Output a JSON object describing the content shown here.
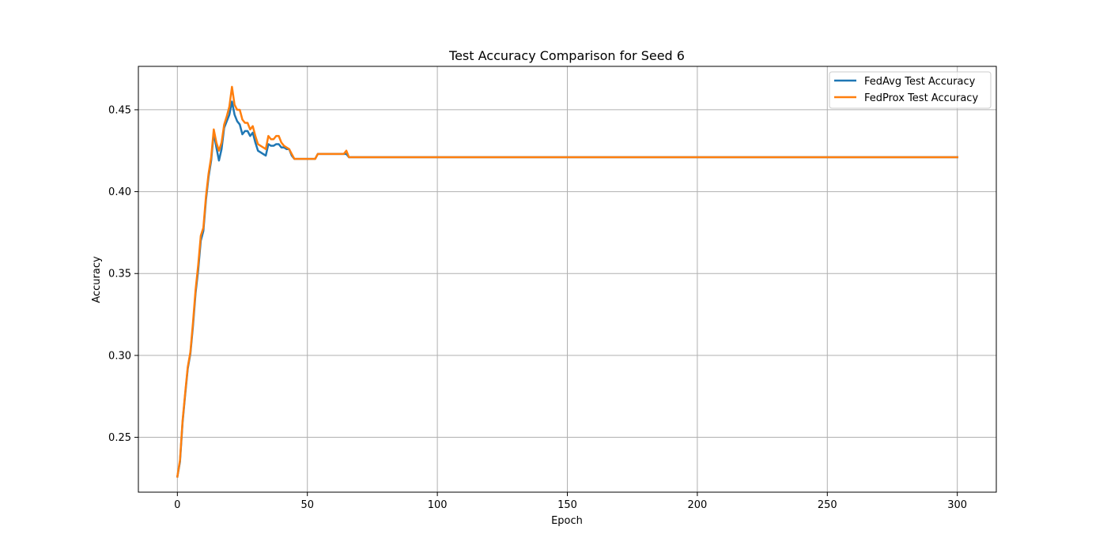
{
  "chart_data": {
    "type": "line",
    "title": "Test Accuracy Comparison for Seed 6",
    "xlabel": "Epoch",
    "ylabel": "Accuracy",
    "xlim": [
      -15,
      315
    ],
    "ylim": [
      0.2165,
      0.4765
    ],
    "xticks": [
      0,
      50,
      100,
      150,
      200,
      250,
      300
    ],
    "yticks": [
      0.25,
      0.3,
      0.35,
      0.4,
      0.45
    ],
    "ytick_labels": [
      "0.25",
      "0.30",
      "0.35",
      "0.40",
      "0.45"
    ],
    "grid": true,
    "legend_position": "top-right",
    "series": [
      {
        "name": "FedAvg Test Accuracy",
        "color": "#1f77b4",
        "points": [
          [
            0,
            0.226
          ],
          [
            1,
            0.235
          ],
          [
            2,
            0.259
          ],
          [
            3,
            0.276
          ],
          [
            4,
            0.292
          ],
          [
            5,
            0.301
          ],
          [
            6,
            0.318
          ],
          [
            7,
            0.338
          ],
          [
            8,
            0.352
          ],
          [
            9,
            0.37
          ],
          [
            10,
            0.376
          ],
          [
            11,
            0.395
          ],
          [
            12,
            0.409
          ],
          [
            13,
            0.419
          ],
          [
            14,
            0.436
          ],
          [
            15,
            0.427
          ],
          [
            16,
            0.419
          ],
          [
            17,
            0.426
          ],
          [
            18,
            0.439
          ],
          [
            19,
            0.443
          ],
          [
            20,
            0.447
          ],
          [
            21,
            0.455
          ],
          [
            22,
            0.447
          ],
          [
            23,
            0.443
          ],
          [
            24,
            0.441
          ],
          [
            25,
            0.435
          ],
          [
            26,
            0.437
          ],
          [
            27,
            0.437
          ],
          [
            28,
            0.434
          ],
          [
            29,
            0.436
          ],
          [
            30,
            0.43
          ],
          [
            31,
            0.425
          ],
          [
            32,
            0.424
          ],
          [
            33,
            0.423
          ],
          [
            34,
            0.422
          ],
          [
            35,
            0.429
          ],
          [
            36,
            0.428
          ],
          [
            37,
            0.428
          ],
          [
            38,
            0.429
          ],
          [
            39,
            0.429
          ],
          [
            40,
            0.427
          ],
          [
            41,
            0.427
          ],
          [
            42,
            0.426
          ],
          [
            43,
            0.426
          ],
          [
            44,
            0.422
          ],
          [
            45,
            0.42
          ],
          [
            46,
            0.42
          ],
          [
            50,
            0.42
          ],
          [
            53,
            0.42
          ],
          [
            54,
            0.423
          ],
          [
            60,
            0.423
          ],
          [
            64,
            0.423
          ],
          [
            65,
            0.423
          ],
          [
            66,
            0.421
          ],
          [
            300,
            0.421
          ]
        ]
      },
      {
        "name": "FedProx Test Accuracy",
        "color": "#ff7f0e",
        "points": [
          [
            0,
            0.226
          ],
          [
            1,
            0.236
          ],
          [
            2,
            0.26
          ],
          [
            3,
            0.277
          ],
          [
            4,
            0.293
          ],
          [
            5,
            0.302
          ],
          [
            6,
            0.32
          ],
          [
            7,
            0.34
          ],
          [
            8,
            0.355
          ],
          [
            9,
            0.373
          ],
          [
            10,
            0.378
          ],
          [
            11,
            0.397
          ],
          [
            12,
            0.411
          ],
          [
            13,
            0.421
          ],
          [
            14,
            0.438
          ],
          [
            15,
            0.43
          ],
          [
            16,
            0.425
          ],
          [
            17,
            0.43
          ],
          [
            18,
            0.441
          ],
          [
            19,
            0.446
          ],
          [
            20,
            0.452
          ],
          [
            21,
            0.464
          ],
          [
            22,
            0.453
          ],
          [
            23,
            0.45
          ],
          [
            24,
            0.45
          ],
          [
            25,
            0.444
          ],
          [
            26,
            0.442
          ],
          [
            27,
            0.442
          ],
          [
            28,
            0.438
          ],
          [
            29,
            0.44
          ],
          [
            30,
            0.434
          ],
          [
            31,
            0.429
          ],
          [
            32,
            0.428
          ],
          [
            33,
            0.427
          ],
          [
            34,
            0.426
          ],
          [
            35,
            0.434
          ],
          [
            36,
            0.432
          ],
          [
            37,
            0.432
          ],
          [
            38,
            0.434
          ],
          [
            39,
            0.434
          ],
          [
            40,
            0.43
          ],
          [
            41,
            0.428
          ],
          [
            42,
            0.427
          ],
          [
            43,
            0.426
          ],
          [
            44,
            0.423
          ],
          [
            45,
            0.42
          ],
          [
            46,
            0.42
          ],
          [
            50,
            0.42
          ],
          [
            53,
            0.42
          ],
          [
            54,
            0.423
          ],
          [
            60,
            0.423
          ],
          [
            64,
            0.423
          ],
          [
            65,
            0.425
          ],
          [
            66,
            0.421
          ],
          [
            300,
            0.421
          ]
        ]
      }
    ]
  }
}
